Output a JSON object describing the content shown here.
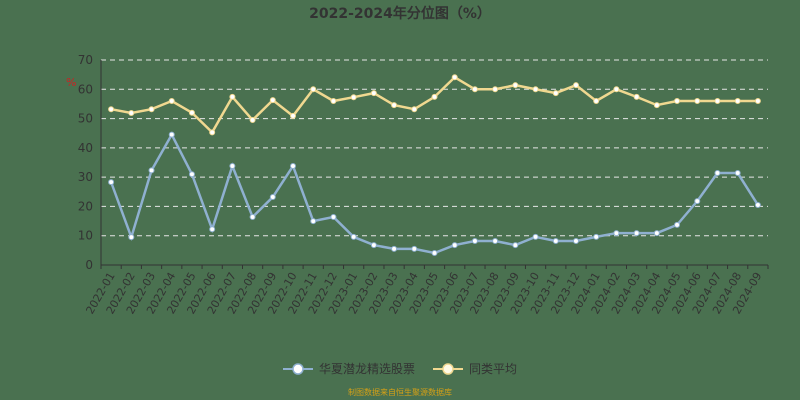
{
  "title": "2022-2024年分位图（%）",
  "source_note": "制图数据来自恒生聚源数据库",
  "y_unit_label": "%",
  "legend": [
    {
      "label": "华夏潜龙精选股票",
      "color": "#8fb0d0"
    },
    {
      "label": "同类平均",
      "color": "#f0d890"
    }
  ],
  "chart_data": {
    "type": "line",
    "title": "2022-2024年分位图（%）",
    "xlabel": "",
    "ylabel": "%",
    "ylim": [
      0,
      70
    ],
    "yticks": [
      0,
      10,
      20,
      30,
      40,
      50,
      60,
      70
    ],
    "grid": true,
    "legend_position": "bottom",
    "categories": [
      "2022-01",
      "2022-02",
      "2022-03",
      "2022-04",
      "2022-05",
      "2022-06",
      "2022-07",
      "2022-08",
      "2022-09",
      "2022-10",
      "2022-11",
      "2022-12",
      "2023-01",
      "2023-02",
      "2023-03",
      "2023-04",
      "2023-05",
      "2023-06",
      "2023-07",
      "2023-08",
      "2023-09",
      "2023-10",
      "2023-11",
      "2023-12",
      "2024-01",
      "2024-02",
      "2024-03",
      "2024-04",
      "2024-05",
      "2024-06",
      "2024-07",
      "2024-08",
      "2024-09"
    ],
    "series": [
      {
        "name": "华夏潜龙精选股票",
        "color": "#8fb0d0",
        "values": [
          28.3,
          9.5,
          32.3,
          44.5,
          31.0,
          12.2,
          33.8,
          16.4,
          23.2,
          33.8,
          15.0,
          16.4,
          9.6,
          6.8,
          5.5,
          5.5,
          4.1,
          6.8,
          8.2,
          8.2,
          6.8,
          9.6,
          8.2,
          8.2,
          9.6,
          10.9,
          10.9,
          10.9,
          13.7,
          21.8,
          31.4,
          31.4,
          20.5
        ]
      },
      {
        "name": "同类平均",
        "color": "#f0d890",
        "values": [
          53.2,
          51.9,
          53.2,
          56.0,
          52.0,
          45.3,
          57.4,
          49.5,
          56.3,
          50.9,
          60.0,
          56.0,
          57.3,
          58.7,
          54.6,
          53.2,
          57.4,
          64.1,
          60.0,
          60.0,
          61.4,
          60.0,
          58.7,
          61.4,
          56.0,
          60.0,
          57.4,
          54.6,
          56.0,
          56.0,
          56.0,
          56.0,
          56.0
        ]
      }
    ]
  }
}
